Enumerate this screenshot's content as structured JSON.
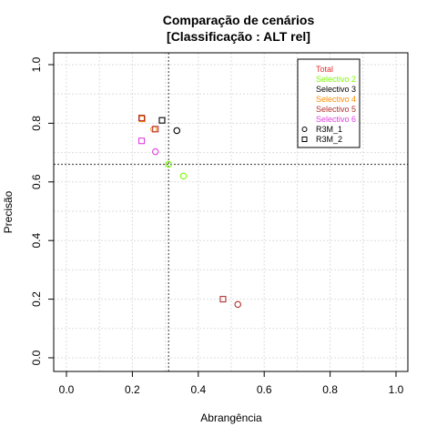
{
  "chart_data": {
    "type": "scatter",
    "title_line1": "Comparação de cenários",
    "title_line2": "[Classificação : ALT rel]",
    "xlabel": "Abrangência",
    "ylabel": "Precisão",
    "xlim": [
      0,
      1
    ],
    "ylim": [
      0,
      1
    ],
    "x_ticks": [
      "0.0",
      "0.2",
      "0.4",
      "0.6",
      "0.8",
      "1.0"
    ],
    "y_ticks": [
      "0.0",
      "0.2",
      "0.4",
      "0.6",
      "0.8",
      "1.0"
    ],
    "grid": true,
    "reference_lines": {
      "x": 0.31,
      "y": 0.66
    },
    "legend_position": "top-right",
    "series": [
      {
        "name": "Total",
        "color": "#e03030",
        "points": []
      },
      {
        "name": "Selectivo 2",
        "color": "#7cfc00",
        "points": [
          {
            "x": 0.31,
            "y": 0.66,
            "marker": "R3M_1"
          },
          {
            "x": 0.355,
            "y": 0.62,
            "marker": "R3M_1"
          }
        ]
      },
      {
        "name": "Selectivo 3",
        "color": "#000000",
        "points": [
          {
            "x": 0.335,
            "y": 0.775,
            "marker": "R3M_1"
          },
          {
            "x": 0.29,
            "y": 0.81,
            "marker": "R3M_2"
          }
        ]
      },
      {
        "name": "Selectivo 4",
        "color": "#ff8c00",
        "points": [
          {
            "x": 0.23,
            "y": 0.815,
            "marker": "R3M_2"
          },
          {
            "x": 0.265,
            "y": 0.78,
            "marker": "R3M_1"
          }
        ]
      },
      {
        "name": "Selectivo 5",
        "color": "#b03030",
        "points": [
          {
            "x": 0.228,
            "y": 0.818,
            "marker": "R3M_2"
          },
          {
            "x": 0.27,
            "y": 0.78,
            "marker": "R3M_2"
          },
          {
            "x": 0.475,
            "y": 0.2,
            "marker": "R3M_2"
          },
          {
            "x": 0.52,
            "y": 0.182,
            "marker": "R3M_1"
          }
        ]
      },
      {
        "name": "Selectivo 6",
        "color": "#e040e0",
        "points": [
          {
            "x": 0.228,
            "y": 0.74,
            "marker": "R3M_2"
          },
          {
            "x": 0.27,
            "y": 0.703,
            "marker": "R3M_1"
          }
        ]
      }
    ],
    "marker_legend": [
      {
        "name": "R3M_1",
        "shape": "circle"
      },
      {
        "name": "R3M_2",
        "shape": "square"
      }
    ]
  }
}
